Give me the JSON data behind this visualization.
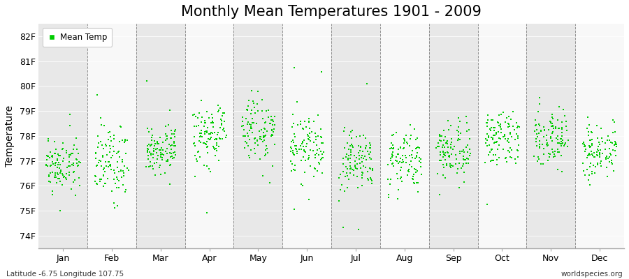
{
  "title": "Monthly Mean Temperatures 1901 - 2009",
  "ylabel": "Temperature",
  "bottom_left": "Latitude -6.75 Longitude 107.75",
  "bottom_right": "worldspecies.org",
  "legend_label": "Mean Temp",
  "years": 109,
  "ylim": [
    73.5,
    82.5
  ],
  "yticks": [
    74,
    75,
    76,
    77,
    78,
    79,
    80,
    81,
    82
  ],
  "ytick_labels": [
    "74F",
    "75F",
    "76F",
    "77F",
    "78F",
    "79F",
    "80F",
    "81F",
    "82F"
  ],
  "months": [
    "Jan",
    "Feb",
    "Mar",
    "Apr",
    "May",
    "Jun",
    "Jul",
    "Aug",
    "Sep",
    "Oct",
    "Nov",
    "Dec"
  ],
  "month_means": [
    76.8,
    76.9,
    77.5,
    78.1,
    78.3,
    77.6,
    77.0,
    77.0,
    77.4,
    77.9,
    78.0,
    77.4
  ],
  "month_stds": [
    0.5,
    0.7,
    0.55,
    0.55,
    0.65,
    0.6,
    0.55,
    0.65,
    0.55,
    0.55,
    0.55,
    0.55
  ],
  "dot_color": "#00cc00",
  "dot_size": 2.5,
  "bg_color_odd": "#e8e8e8",
  "bg_color_even": "#f8f8f8",
  "vline_color": "#666666",
  "title_fontsize": 15,
  "axis_fontsize": 10,
  "tick_fontsize": 9,
  "seed": 12345
}
